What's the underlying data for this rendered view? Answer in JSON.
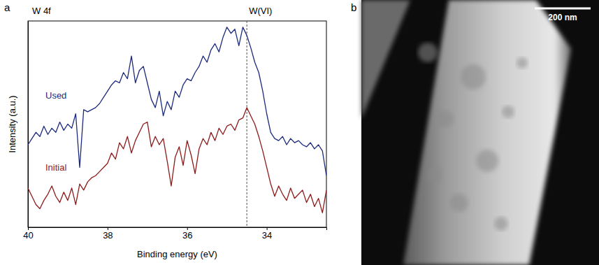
{
  "chart_data": {
    "type": "line",
    "panel": "a",
    "title": "W 4f",
    "x_label": "Binding energy (eV)",
    "y_label": "Intensity (a.u.)",
    "xlim": [
      40,
      32.5
    ],
    "xticks": [
      40,
      38,
      36,
      34
    ],
    "ylim": [
      0,
      10
    ],
    "yticks": [],
    "tick_labels": "x",
    "grid": false,
    "x": [
      40.0,
      39.9,
      39.8,
      39.7,
      39.6,
      39.5,
      39.4,
      39.3,
      39.2,
      39.1,
      39.0,
      38.9,
      38.8,
      38.7,
      38.6,
      38.5,
      38.4,
      38.3,
      38.2,
      38.1,
      38.0,
      37.9,
      37.8,
      37.7,
      37.6,
      37.5,
      37.4,
      37.3,
      37.2,
      37.1,
      37.0,
      36.9,
      36.8,
      36.7,
      36.6,
      36.5,
      36.4,
      36.3,
      36.2,
      36.1,
      36.0,
      35.9,
      35.8,
      35.7,
      35.6,
      35.5,
      35.4,
      35.3,
      35.2,
      35.1,
      35.0,
      34.9,
      34.8,
      34.7,
      34.6,
      34.5,
      34.4,
      34.3,
      34.2,
      34.1,
      34.0,
      33.9,
      33.8,
      33.7,
      33.6,
      33.5,
      33.4,
      33.3,
      33.2,
      33.1,
      33.0,
      32.9,
      32.8,
      32.7,
      32.6,
      32.5
    ],
    "series": [
      {
        "name": "Used",
        "color": "#1c2a7c",
        "values": [
          4.0,
          4.3,
          4.6,
          4.4,
          4.9,
          4.5,
          4.8,
          4.6,
          5.1,
          4.7,
          5.0,
          4.8,
          5.5,
          2.9,
          5.7,
          5.6,
          5.7,
          5.8,
          6.0,
          6.3,
          6.6,
          6.9,
          7.1,
          7.0,
          7.5,
          7.2,
          8.3,
          7.0,
          7.6,
          7.8,
          7.0,
          6.2,
          5.8,
          6.6,
          5.4,
          6.1,
          5.7,
          6.6,
          6.3,
          6.9,
          7.2,
          7.1,
          7.5,
          7.8,
          8.3,
          8.0,
          8.6,
          8.9,
          8.5,
          9.2,
          9.7,
          9.4,
          9.6,
          8.8,
          9.7,
          9.3,
          8.7,
          8.0,
          7.5,
          6.6,
          5.5,
          4.6,
          4.3,
          4.2,
          4.4,
          4.0,
          4.3,
          4.1,
          4.2,
          4.0,
          3.9,
          4.1,
          3.8,
          4.0,
          3.7,
          2.5
        ]
      },
      {
        "name": "Initial",
        "color": "#8e1b1b",
        "values": [
          1.9,
          1.5,
          1.1,
          0.9,
          1.3,
          1.6,
          2.0,
          1.5,
          1.2,
          1.7,
          1.3,
          1.9,
          1.1,
          2.1,
          1.8,
          2.2,
          2.4,
          2.5,
          2.7,
          2.9,
          3.1,
          3.6,
          3.3,
          4.1,
          3.8,
          4.4,
          3.6,
          4.2,
          4.6,
          5.0,
          5.1,
          3.9,
          4.4,
          4.0,
          4.3,
          3.2,
          2.0,
          3.4,
          3.9,
          3.0,
          4.2,
          3.5,
          2.6,
          3.8,
          4.3,
          4.0,
          4.6,
          4.2,
          4.8,
          4.5,
          4.9,
          5.0,
          4.7,
          5.2,
          5.3,
          5.8,
          5.4,
          5.0,
          4.4,
          3.7,
          2.9,
          2.1,
          1.5,
          2.0,
          1.6,
          1.3,
          1.9,
          1.4,
          1.6,
          1.8,
          1.2,
          1.6,
          1.0,
          1.4,
          0.7,
          1.8
        ]
      }
    ],
    "annotations": [
      {
        "text": "W(VI)",
        "x": 34.5,
        "line_style": "dashed"
      }
    ]
  },
  "image_panel": {
    "panel": "b",
    "scale_bar_label": "200 nm"
  }
}
